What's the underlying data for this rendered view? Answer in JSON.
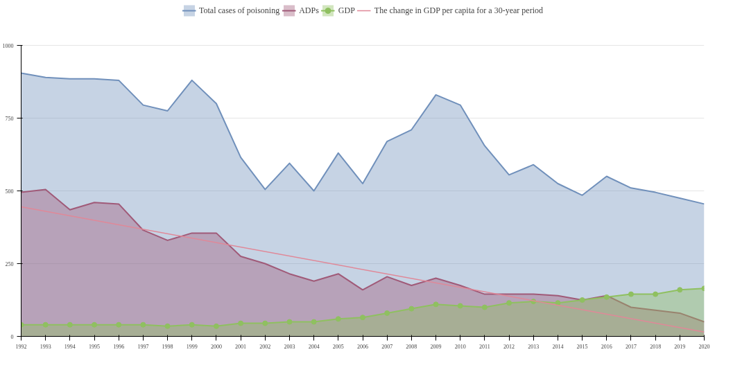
{
  "chart_data": {
    "type": "area",
    "x": [
      1992,
      1993,
      1994,
      1995,
      1996,
      1997,
      1998,
      1999,
      2000,
      2001,
      2002,
      2003,
      2004,
      2005,
      2006,
      2007,
      2008,
      2009,
      2010,
      2011,
      2012,
      2013,
      2014,
      2015,
      2016,
      2017,
      2018,
      2019,
      2020
    ],
    "xlim": [
      1992,
      2020
    ],
    "xticks": [
      1992,
      1993,
      1994,
      1995,
      1996,
      1997,
      1998,
      1999,
      2000,
      2001,
      2002,
      2003,
      2004,
      2005,
      2006,
      2007,
      2008,
      2009,
      2010,
      2011,
      2012,
      2013,
      2014,
      2015,
      2016,
      2017,
      2018,
      2019,
      2020
    ],
    "ylim": [
      0,
      1000
    ],
    "yticks": [
      0,
      250,
      500,
      750,
      1000
    ],
    "grid": "y",
    "legend": "top",
    "series": [
      {
        "name": "Total cases of poisoning",
        "color": "#7090bb",
        "values": [
          905,
          890,
          885,
          885,
          880,
          795,
          775,
          880,
          800,
          615,
          505,
          595,
          500,
          630,
          525,
          670,
          710,
          830,
          795,
          655,
          555,
          590,
          525,
          485,
          550,
          510,
          495,
          475,
          455
        ]
      },
      {
        "name": "ADPs",
        "color": "#a05a78",
        "values": [
          495,
          505,
          435,
          460,
          455,
          365,
          330,
          355,
          355,
          275,
          250,
          215,
          190,
          215,
          160,
          205,
          175,
          200,
          175,
          145,
          145,
          145,
          140,
          125,
          140,
          100,
          90,
          80,
          50
        ]
      },
      {
        "name": "GDP",
        "color": "#8fc060",
        "marker": "circle",
        "values": [
          40,
          40,
          40,
          40,
          40,
          40,
          35,
          40,
          35,
          45,
          45,
          50,
          50,
          60,
          65,
          80,
          95,
          110,
          105,
          100,
          115,
          120,
          115,
          125,
          135,
          145,
          145,
          160,
          165
        ]
      },
      {
        "name": "The change in GDP per capita for a 30-year period",
        "type": "line",
        "color": "#e08898",
        "x": [
          1992,
          2020
        ],
        "values": [
          445,
          15
        ]
      }
    ]
  }
}
